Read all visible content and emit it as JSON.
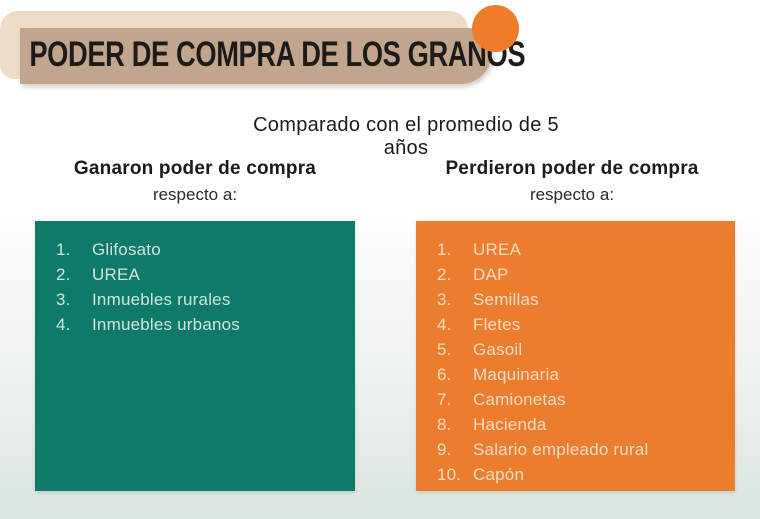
{
  "header": {
    "title": "PODER DE COMPRA DE LOS GRANOS",
    "banner_color": "#c2a58d",
    "banner_back_color": "#eddcc7",
    "accent_circle_color": "#ee7c28",
    "title_color": "#1d1b1a"
  },
  "subtitle": "Comparado con el promedio de 5 años",
  "columns": {
    "gained": {
      "title": "Ganaron poder de compra",
      "subtitle": "respecto a:",
      "box_color": "#0f7a67",
      "text_color": "#d2e4de",
      "items": [
        "Glifosato",
        "UREA",
        "Inmuebles rurales",
        "Inmuebles urbanos"
      ]
    },
    "lost": {
      "title": "Perdieron poder de compra",
      "subtitle": "respecto a:",
      "box_color": "#ec7d2e",
      "text_color": "#f6dcc4",
      "items": [
        "UREA",
        "DAP",
        "Semillas",
        "Fletes",
        "Gasoil",
        "Maquinaria",
        "Camionetas",
        "Hacienda",
        "Salario empleado rural",
        "Capón"
      ]
    }
  }
}
